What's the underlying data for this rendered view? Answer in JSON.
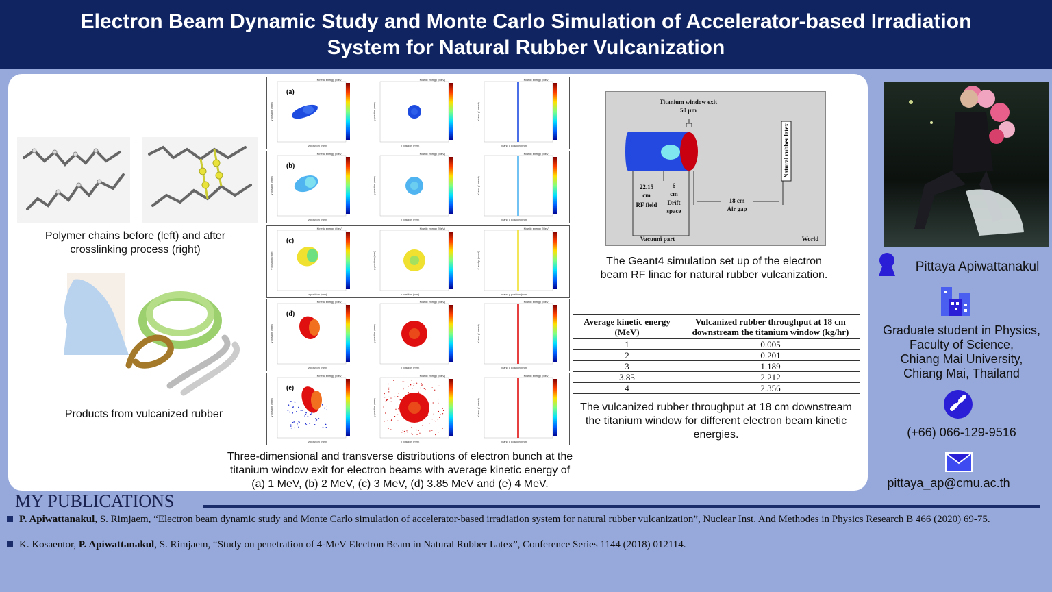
{
  "title": {
    "line1": "Electron Beam Dynamic Study and Monte Carlo Simulation of  Accelerator-based Irradiation",
    "line2": "System for Natural Rubber Vulcanization"
  },
  "left": {
    "polymer_caption": "Polymer chains before (left) and after crosslinking process (right)",
    "products_caption": "Products from vulcanized rubber"
  },
  "figures": {
    "panel_labels": [
      "(a)",
      "(b)",
      "(c)",
      "(d)",
      "(e)"
    ],
    "colorbar_label": "Kinetic energy (MeV)",
    "axis_labels": {
      "x3d": "x position (mm)",
      "z3d": "z position (mm)",
      "y": "y position (mm)",
      "xt": "x position (mm)",
      "xy": "x and y position (mm)",
      "div": "x' and y' (mrad)"
    },
    "caption": "Three-dimensional and transverse distributions of electron bunch at the titanium window exit for electron beams with average kinetic energy of (a) 1 MeV, (b) 2 MeV, (c) 3 MeV, (d) 3.85 MeV and (e) 4 MeV."
  },
  "diagram": {
    "window_label": "Titanium window exit",
    "window_thickness": "50 µm",
    "rf_length": "22.15",
    "rf_unit": "cm",
    "rf_label": "RF field",
    "drift_length": "6",
    "drift_unit": "cm",
    "drift_label1": "Drift",
    "drift_label2": "space",
    "gap_length": "18 cm",
    "gap_label": "Air gap",
    "latex_label": "Natural rubber latex",
    "vacuum_label": "Vacuum part",
    "world_label": "World",
    "caption": "The Geant4 simulation set up of the electron beam RF linac for natural rubber vulcanization."
  },
  "table": {
    "headers": [
      "Average kinetic energy (MeV)",
      "Vulcanized rubber throughput at 18 cm downstream the titanium window (kg/hr)"
    ],
    "rows": [
      [
        "1",
        "0.005"
      ],
      [
        "2",
        "0.201"
      ],
      [
        "3",
        "1.189"
      ],
      [
        "3.85",
        "2.212"
      ],
      [
        "4",
        "2.356"
      ]
    ],
    "caption": "The vulcanized rubber throughput at 18 cm downstream the titanium window for different electron beam kinetic energies."
  },
  "profile": {
    "name": "Pittaya Apiwattanakul",
    "affiliation": [
      "Graduate student in Physics,",
      "Faculty of Science,",
      "Chiang Mai University,",
      "Chiang Mai, Thailand"
    ],
    "phone": "(+66) 066-129-9516",
    "email": "pittaya_ap@cmu.ac.th",
    "icon_color": "#2a1fd6"
  },
  "publications": {
    "heading": "MY PUBLICATIONS",
    "items": [
      {
        "author_bold": "P. Apiwattanakul",
        "rest": ", S. Rimjaem, “Electron beam dynamic study and Monte Carlo simulation of accelerator-based irradiation system for natural rubber vulcanization”, Nuclear Inst. And Methodes in Physics Research B 466 (2020) 69-75."
      },
      {
        "pre": "K. Kosaentor, ",
        "author_bold": "P. Apiwattanakul",
        "rest": ", S. Rimjaem, “Study on penetration of 4-MeV Electron Beam in Natural Rubber Latex”, Conference Series 1144 (2018) 012114."
      }
    ]
  },
  "colors": {
    "header": "#0f2461",
    "background": "#97a9da",
    "accent": "#1a2d6a"
  }
}
